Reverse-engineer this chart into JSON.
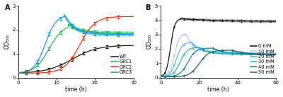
{
  "panel_A": {
    "title": "A",
    "xlabel": "time (h)",
    "ylabel": "OD₅₀₀",
    "xlim": [
      0,
      30
    ],
    "ylim": [
      0,
      3
    ],
    "yticks": [
      0,
      1,
      2,
      3
    ],
    "xticks": [
      0,
      10,
      20,
      30
    ],
    "series": {
      "WT": {
        "color": "#1a1a1a",
        "lag_c": 14,
        "lag_r": 0.3,
        "peak_t": 29,
        "peak_v": 1.35,
        "plat": null,
        "drop_r": 0.0
      },
      "GRC1": {
        "color": "#22bb55",
        "lag_c": 8,
        "lag_r": 0.55,
        "peak_t": 13,
        "peak_v": 2.22,
        "plat": 1.85,
        "drop_r": 0.3
      },
      "GRC2": {
        "color": "#ee3311",
        "lag_c": 16,
        "lag_r": 0.5,
        "peak_t": 23,
        "peak_v": 2.55,
        "plat": null,
        "drop_r": 0.0
      },
      "GRC3": {
        "color": "#1199dd",
        "lag_c": 7,
        "lag_r": 0.7,
        "peak_t": 12,
        "peak_v": 2.62,
        "plat": 1.8,
        "drop_r": 0.4
      }
    },
    "order": [
      "WT",
      "GRC1",
      "GRC2",
      "GRC3"
    ]
  },
  "panel_B": {
    "title": "B",
    "xlabel": "time (h)",
    "ylabel": "OD₅₀₀",
    "xlim": [
      0,
      60
    ],
    "ylim": [
      0,
      5
    ],
    "yticks": [
      0,
      1,
      2,
      3,
      4,
      5
    ],
    "xticks": [
      0,
      20,
      40,
      60
    ],
    "series": {
      "0 mM": {
        "color": "#111111",
        "lag_c": 5,
        "lag_r": 0.9,
        "peak_t": 10,
        "peak_v": 4.1,
        "plat": 3.9,
        "drop_r": 0.05
      },
      "10 mM": {
        "color": "#aaceff",
        "lag_c": 7,
        "lag_r": 0.75,
        "peak_t": 13,
        "peak_v": 3.05,
        "plat": 1.68,
        "drop_r": 0.22
      },
      "20 mM": {
        "color": "#66aaee",
        "lag_c": 8,
        "lag_r": 0.65,
        "peak_t": 16,
        "peak_v": 2.45,
        "plat": 1.65,
        "drop_r": 0.2
      },
      "30 mM": {
        "color": "#22bbbb",
        "lag_c": 10,
        "lag_r": 0.55,
        "peak_t": 20,
        "peak_v": 2.1,
        "plat": 1.63,
        "drop_r": 0.18
      },
      "40 mM": {
        "color": "#118899",
        "lag_c": 14,
        "lag_r": 0.48,
        "peak_t": 27,
        "peak_v": 2.05,
        "plat": 1.62,
        "drop_r": 0.16
      },
      "50 mM": {
        "color": "#116677",
        "lag_c": 20,
        "lag_r": 0.4,
        "peak_t": 37,
        "peak_v": 1.9,
        "plat": 1.6,
        "drop_r": 0.14
      }
    },
    "order": [
      "0 mM",
      "10 mM",
      "20 mM",
      "30 mM",
      "40 mM",
      "50 mM"
    ]
  }
}
